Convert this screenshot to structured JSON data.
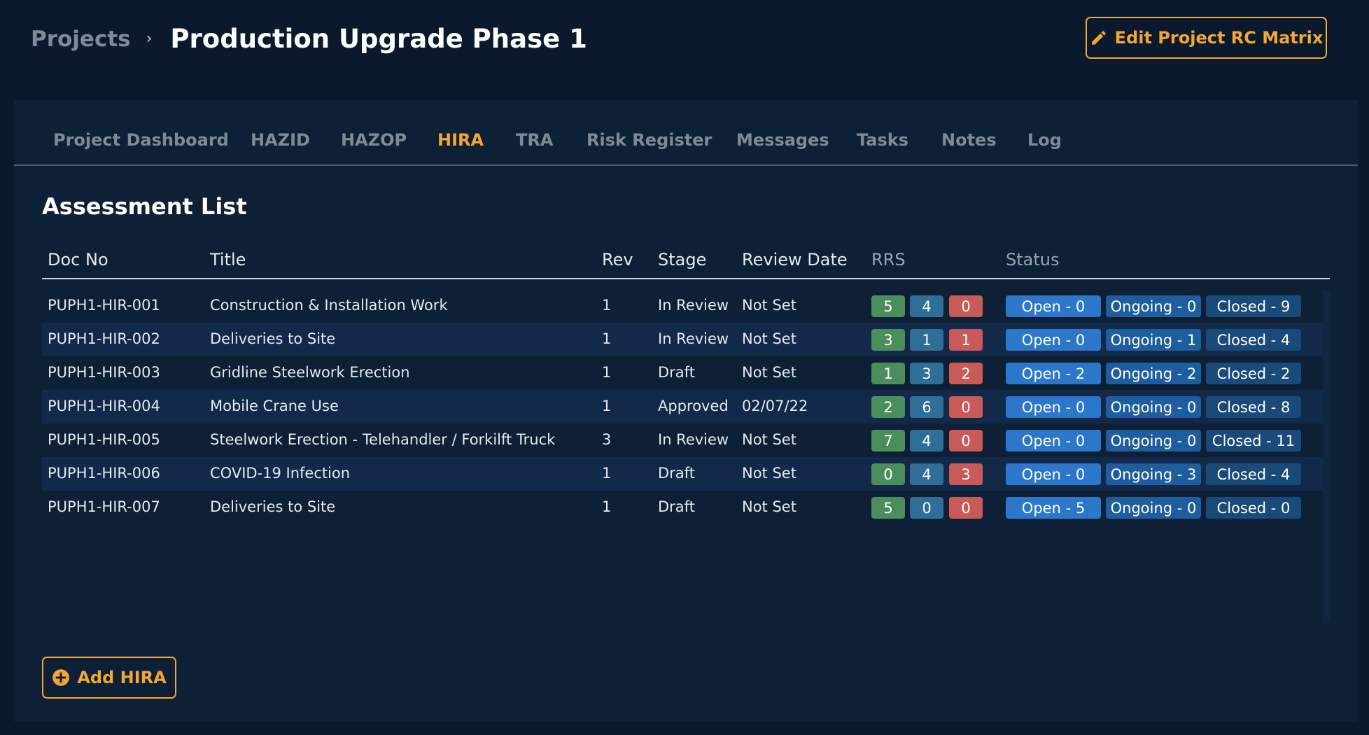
{
  "header": {
    "breadcrumb_root": "Projects",
    "breadcrumb_separator": "›",
    "title": "Production Upgrade Phase 1",
    "edit_button_label": "Edit Project RC Matrix",
    "edit_button_icon": "pencil-icon"
  },
  "tabs": [
    {
      "label": "Project Dashboard",
      "active": false
    },
    {
      "label": "HAZID",
      "active": false
    },
    {
      "label": "HAZOP",
      "active": false
    },
    {
      "label": "HIRA",
      "active": true
    },
    {
      "label": "TRA",
      "active": false
    },
    {
      "label": "Risk Register",
      "active": false
    },
    {
      "label": "Messages",
      "active": false
    },
    {
      "label": "Tasks",
      "active": false
    },
    {
      "label": "Notes",
      "active": false
    },
    {
      "label": "Log",
      "active": false
    }
  ],
  "section_title": "Assessment List",
  "table": {
    "columns": [
      "Doc No",
      "Title",
      "Rev",
      "Stage",
      "Review Date",
      "RRS",
      "Status"
    ],
    "rows": [
      {
        "doc_no": "PUPH1-HIR-001",
        "title": "Construction & Installation Work",
        "rev": "1",
        "stage": "In Review",
        "review_date": "Not Set",
        "rrs": [
          "5",
          "4",
          "0"
        ],
        "status": [
          "Open - 0",
          "Ongoing - 0",
          "Closed - 9"
        ]
      },
      {
        "doc_no": "PUPH1-HIR-002",
        "title": "Deliveries to Site",
        "rev": "1",
        "stage": "In Review",
        "review_date": "Not Set",
        "rrs": [
          "3",
          "1",
          "1"
        ],
        "status": [
          "Open - 0",
          "Ongoing - 1",
          "Closed - 4"
        ]
      },
      {
        "doc_no": "PUPH1-HIR-003",
        "title": "Gridline Steelwork Erection",
        "rev": "1",
        "stage": "Draft",
        "review_date": "Not Set",
        "rrs": [
          "1",
          "3",
          "2"
        ],
        "status": [
          "Open - 2",
          "Ongoing - 2",
          "Closed - 2"
        ]
      },
      {
        "doc_no": "PUPH1-HIR-004",
        "title": "Mobile Crane Use",
        "rev": "1",
        "stage": "Approved",
        "review_date": "02/07/22",
        "rrs": [
          "2",
          "6",
          "0"
        ],
        "status": [
          "Open - 0",
          "Ongoing - 0",
          "Closed - 8"
        ]
      },
      {
        "doc_no": "PUPH1-HIR-005",
        "title": "Steelwork Erection - Telehandler / Forkilft Truck",
        "rev": "3",
        "stage": "In Review",
        "review_date": "Not Set",
        "rrs": [
          "7",
          "4",
          "0"
        ],
        "status": [
          "Open - 0",
          "Ongoing - 0",
          "Closed - 11"
        ]
      },
      {
        "doc_no": "PUPH1-HIR-006",
        "title": "COVID-19 Infection",
        "rev": "1",
        "stage": "Draft",
        "review_date": "Not Set",
        "rrs": [
          "0",
          "4",
          "3"
        ],
        "status": [
          "Open - 0",
          "Ongoing - 3",
          "Closed - 4"
        ]
      },
      {
        "doc_no": "PUPH1-HIR-007",
        "title": "Deliveries to Site",
        "rev": "1",
        "stage": "Draft",
        "review_date": "Not Set",
        "rrs": [
          "5",
          "0",
          "0"
        ],
        "status": [
          "Open - 5",
          "Ongoing - 0",
          "Closed - 0"
        ]
      }
    ]
  },
  "add_button_label": "Add HIRA",
  "add_button_icon": "plus-circle-icon",
  "colors": {
    "accent": "#f2a636",
    "rrs_green": "#4c8d5c",
    "rrs_blue": "#2f6e97",
    "rrs_red": "#c85a59",
    "status_open": "#2c77c9",
    "status_ongoing": "#1e5e9e",
    "status_closed": "#1a4a7a"
  }
}
